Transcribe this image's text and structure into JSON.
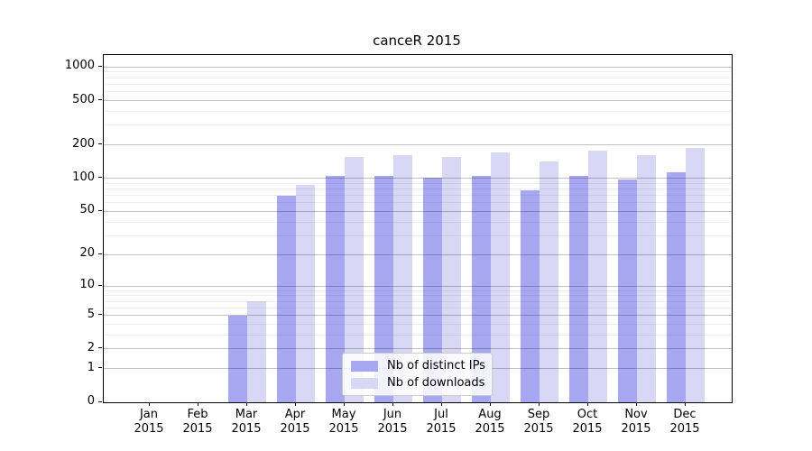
{
  "chart_data": {
    "type": "bar",
    "title": "canceR 2015",
    "categories": [
      "Jan",
      "Feb",
      "Mar",
      "Apr",
      "May",
      "Jun",
      "Jul",
      "Aug",
      "Sep",
      "Oct",
      "Nov",
      "Dec"
    ],
    "year_label": "2015",
    "series": [
      {
        "name": "Nb of distinct IPs",
        "color": "#a8a8f2",
        "values": [
          0,
          0,
          5,
          69,
          106,
          106,
          102,
          106,
          78,
          105,
          98,
          113
        ]
      },
      {
        "name": "Nb of downloads",
        "color": "#d8d8f6",
        "values": [
          0,
          0,
          7,
          88,
          157,
          161,
          157,
          172,
          141,
          177,
          161,
          187
        ]
      }
    ],
    "y_axis": {
      "scale": "log1p",
      "major_ticks": [
        0,
        1,
        2,
        5,
        10,
        20,
        50,
        100,
        200,
        500,
        1000
      ],
      "minor_ticks": [
        3,
        4,
        6,
        7,
        8,
        9,
        30,
        40,
        60,
        70,
        80,
        90,
        300,
        400,
        600,
        700,
        800,
        900
      ],
      "max": 1280
    },
    "legend": {
      "position": "lower-center",
      "entries": [
        "Nb of distinct IPs",
        "Nb of downloads"
      ]
    },
    "grid": true
  },
  "colors": {
    "major_grid": "rgba(0,0,0,0.24)",
    "minor_grid": "rgba(0,0,0,0.07)",
    "spine": "#000000",
    "background": "#ffffff",
    "legend_border": "#cccccc",
    "legend_background": "rgba(255,255,255,0.85)",
    "text": "#000000"
  }
}
